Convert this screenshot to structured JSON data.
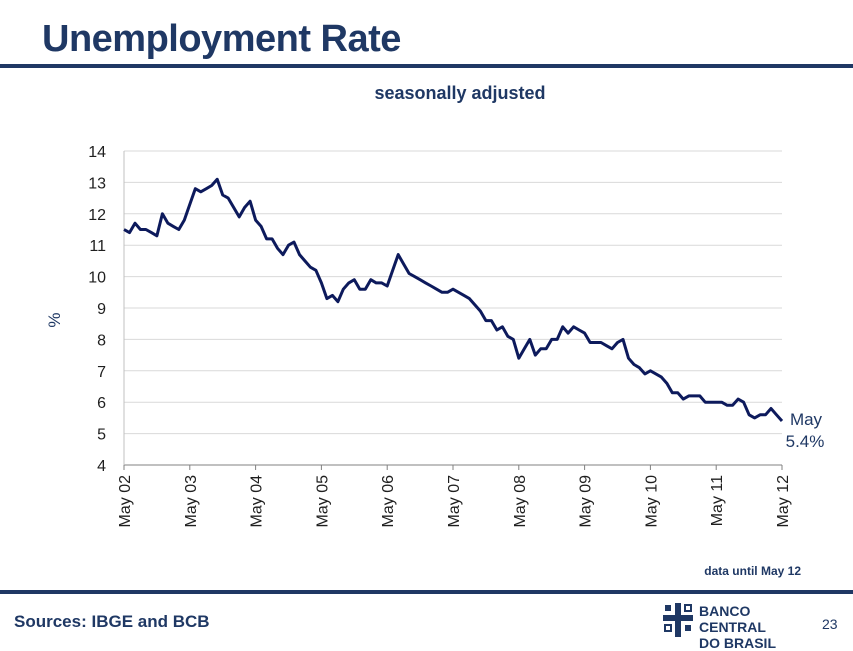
{
  "header": {
    "title": "Unemployment Rate"
  },
  "footer": {
    "sources": "Sources: IBGE and BCB",
    "note": "data until May 12",
    "logo_line1": "BANCO CENTRAL",
    "logo_line2": "DO BRASIL",
    "page_number": "23"
  },
  "colors": {
    "brand": "#1f3864",
    "line": "#0d1a5c",
    "grid": "#d9d9d9"
  },
  "chart_data": {
    "type": "line",
    "title": "seasonally adjusted",
    "xlabel": "",
    "ylabel": "%",
    "ylim": [
      4,
      14
    ],
    "yticks": [
      4,
      5,
      6,
      7,
      8,
      9,
      10,
      11,
      12,
      13,
      14
    ],
    "grid": "horizontal",
    "x_tick_labels": [
      "May 02",
      "May 03",
      "May 04",
      "May 05",
      "May 06",
      "May 07",
      "May 08",
      "May 09",
      "May 10",
      "May 11",
      "May 12"
    ],
    "annotation": {
      "line1": "May",
      "line2": "5.4%"
    },
    "series": [
      {
        "name": "",
        "start": "2002-05",
        "frequency": "monthly",
        "values": [
          11.5,
          11.4,
          11.7,
          11.5,
          11.5,
          11.4,
          11.3,
          12.0,
          11.7,
          11.6,
          11.5,
          11.8,
          12.3,
          12.8,
          12.7,
          12.8,
          12.9,
          13.1,
          12.6,
          12.5,
          12.2,
          11.9,
          12.2,
          12.4,
          11.8,
          11.6,
          11.2,
          11.2,
          10.9,
          10.7,
          11.0,
          11.1,
          10.7,
          10.5,
          10.3,
          10.2,
          9.8,
          9.3,
          9.4,
          9.2,
          9.6,
          9.8,
          9.9,
          9.6,
          9.6,
          9.9,
          9.8,
          9.8,
          9.7,
          10.2,
          10.7,
          10.4,
          10.1,
          10.0,
          9.9,
          9.8,
          9.7,
          9.6,
          9.5,
          9.5,
          9.6,
          9.5,
          9.4,
          9.3,
          9.1,
          8.9,
          8.6,
          8.6,
          8.3,
          8.4,
          8.1,
          8.0,
          7.4,
          7.7,
          8.0,
          7.5,
          7.7,
          7.7,
          8.0,
          8.0,
          8.4,
          8.2,
          8.4,
          8.3,
          8.2,
          7.9,
          7.9,
          7.9,
          7.8,
          7.7,
          7.9,
          8.0,
          7.4,
          7.2,
          7.1,
          6.9,
          7.0,
          6.9,
          6.8,
          6.6,
          6.3,
          6.3,
          6.1,
          6.2,
          6.2,
          6.2,
          6.0,
          6.0,
          6.0,
          6.0,
          5.9,
          5.9,
          6.1,
          6.0,
          5.6,
          5.5,
          5.6,
          5.6,
          5.8,
          5.6,
          5.4
        ]
      }
    ]
  }
}
